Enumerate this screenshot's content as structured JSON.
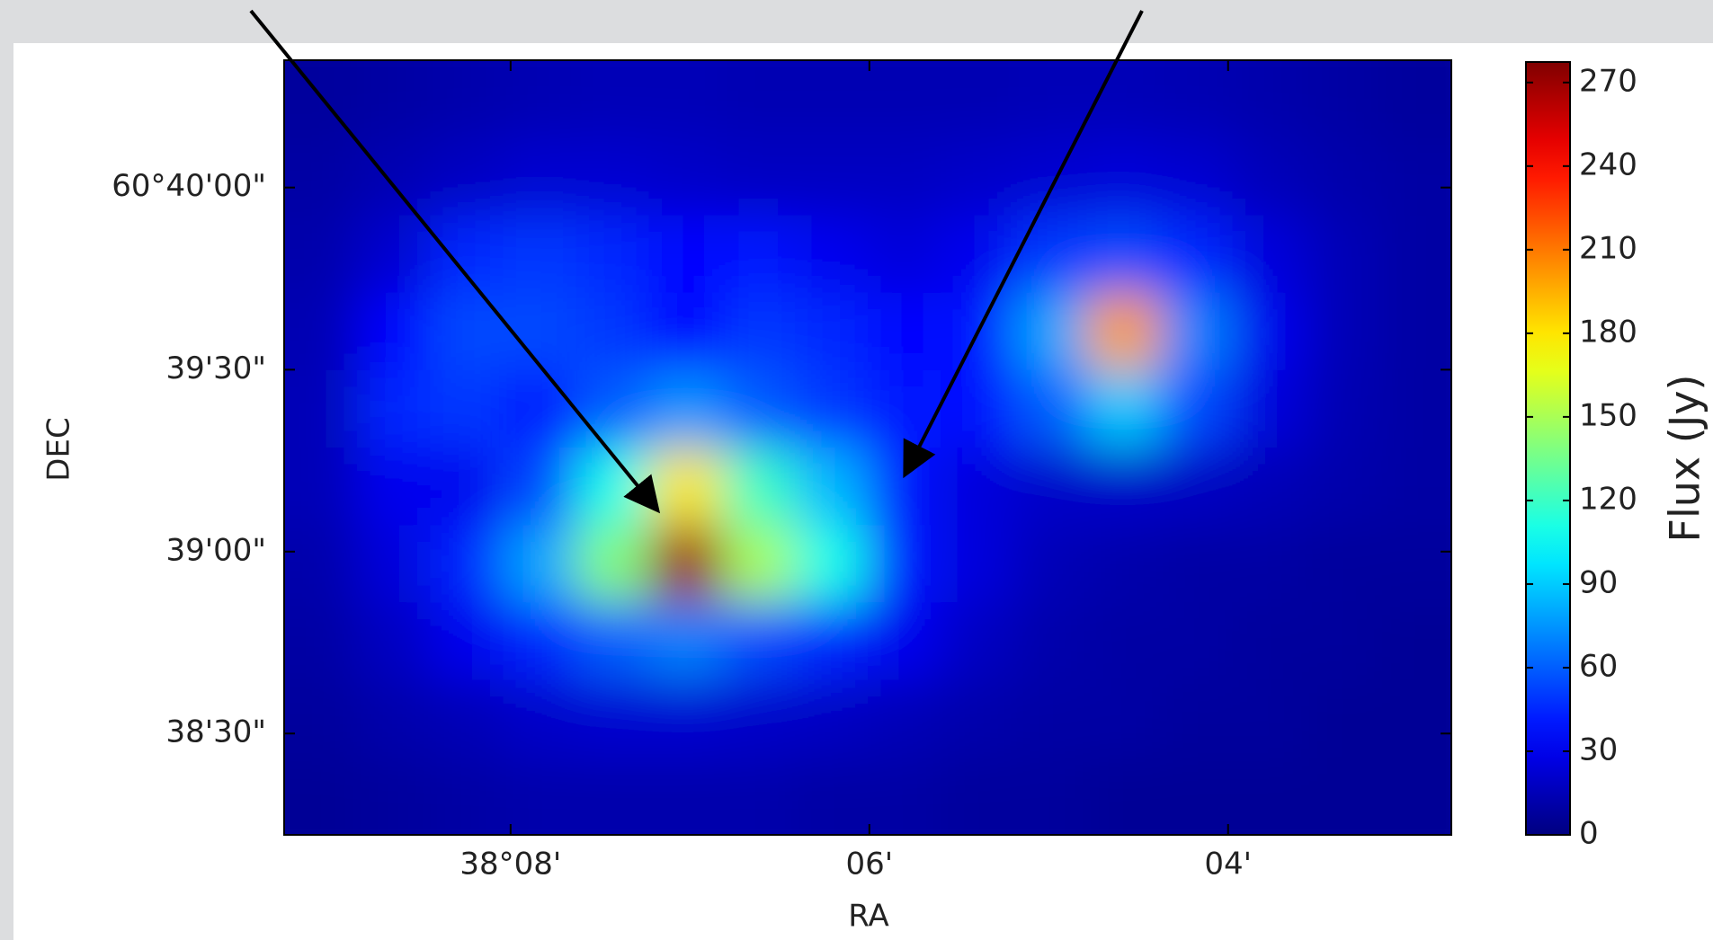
{
  "chart_data": {
    "type": "heatmap",
    "x_label": "RA",
    "y_label": "DEC",
    "colorbar_label": "Flux (Jy)",
    "colormap": "jet",
    "xlim": [
      38.15437,
      38.04593
    ],
    "ylim": [
      60.63703,
      60.6725
    ],
    "xticks": [
      {
        "value": 38.13333,
        "label": "38°08'"
      },
      {
        "value": 38.1,
        "label": "06'"
      },
      {
        "value": 38.06667,
        "label": "04'"
      }
    ],
    "yticks": [
      {
        "value": 60.66667,
        "label": "60°40'00\""
      },
      {
        "value": 60.65833,
        "label": "39'30\""
      },
      {
        "value": 60.65,
        "label": "39'00\""
      },
      {
        "value": 60.64167,
        "label": "38'30\""
      }
    ],
    "clim": [
      0,
      278
    ],
    "cticks": [
      0,
      30,
      60,
      90,
      120,
      150,
      180,
      210,
      240,
      270
    ],
    "values": [
      [
        8,
        10,
        12,
        14,
        15,
        15,
        14,
        14,
        14,
        14,
        15,
        15,
        14,
        12,
        10,
        8
      ],
      [
        10,
        14,
        18,
        22,
        22,
        20,
        18,
        18,
        18,
        20,
        22,
        24,
        22,
        16,
        12,
        10
      ],
      [
        12,
        22,
        45,
        50,
        45,
        35,
        40,
        30,
        25,
        30,
        50,
        55,
        45,
        25,
        15,
        10
      ],
      [
        14,
        35,
        55,
        55,
        50,
        35,
        50,
        45,
        35,
        40,
        80,
        200,
        70,
        30,
        15,
        10
      ],
      [
        15,
        45,
        50,
        40,
        60,
        75,
        60,
        50,
        40,
        38,
        60,
        90,
        55,
        25,
        14,
        10
      ],
      [
        15,
        30,
        30,
        55,
        110,
        180,
        120,
        85,
        40,
        25,
        20,
        20,
        18,
        15,
        12,
        10
      ],
      [
        12,
        25,
        45,
        80,
        140,
        270,
        150,
        110,
        40,
        25,
        15,
        12,
        10,
        10,
        8,
        8
      ],
      [
        10,
        18,
        30,
        45,
        60,
        70,
        55,
        45,
        30,
        18,
        12,
        10,
        10,
        8,
        8,
        6
      ],
      [
        8,
        12,
        15,
        20,
        22,
        22,
        20,
        18,
        15,
        12,
        10,
        10,
        8,
        8,
        6,
        6
      ],
      [
        6,
        8,
        10,
        12,
        12,
        12,
        12,
        10,
        10,
        8,
        8,
        6,
        6,
        6,
        6,
        6
      ]
    ]
  }
}
